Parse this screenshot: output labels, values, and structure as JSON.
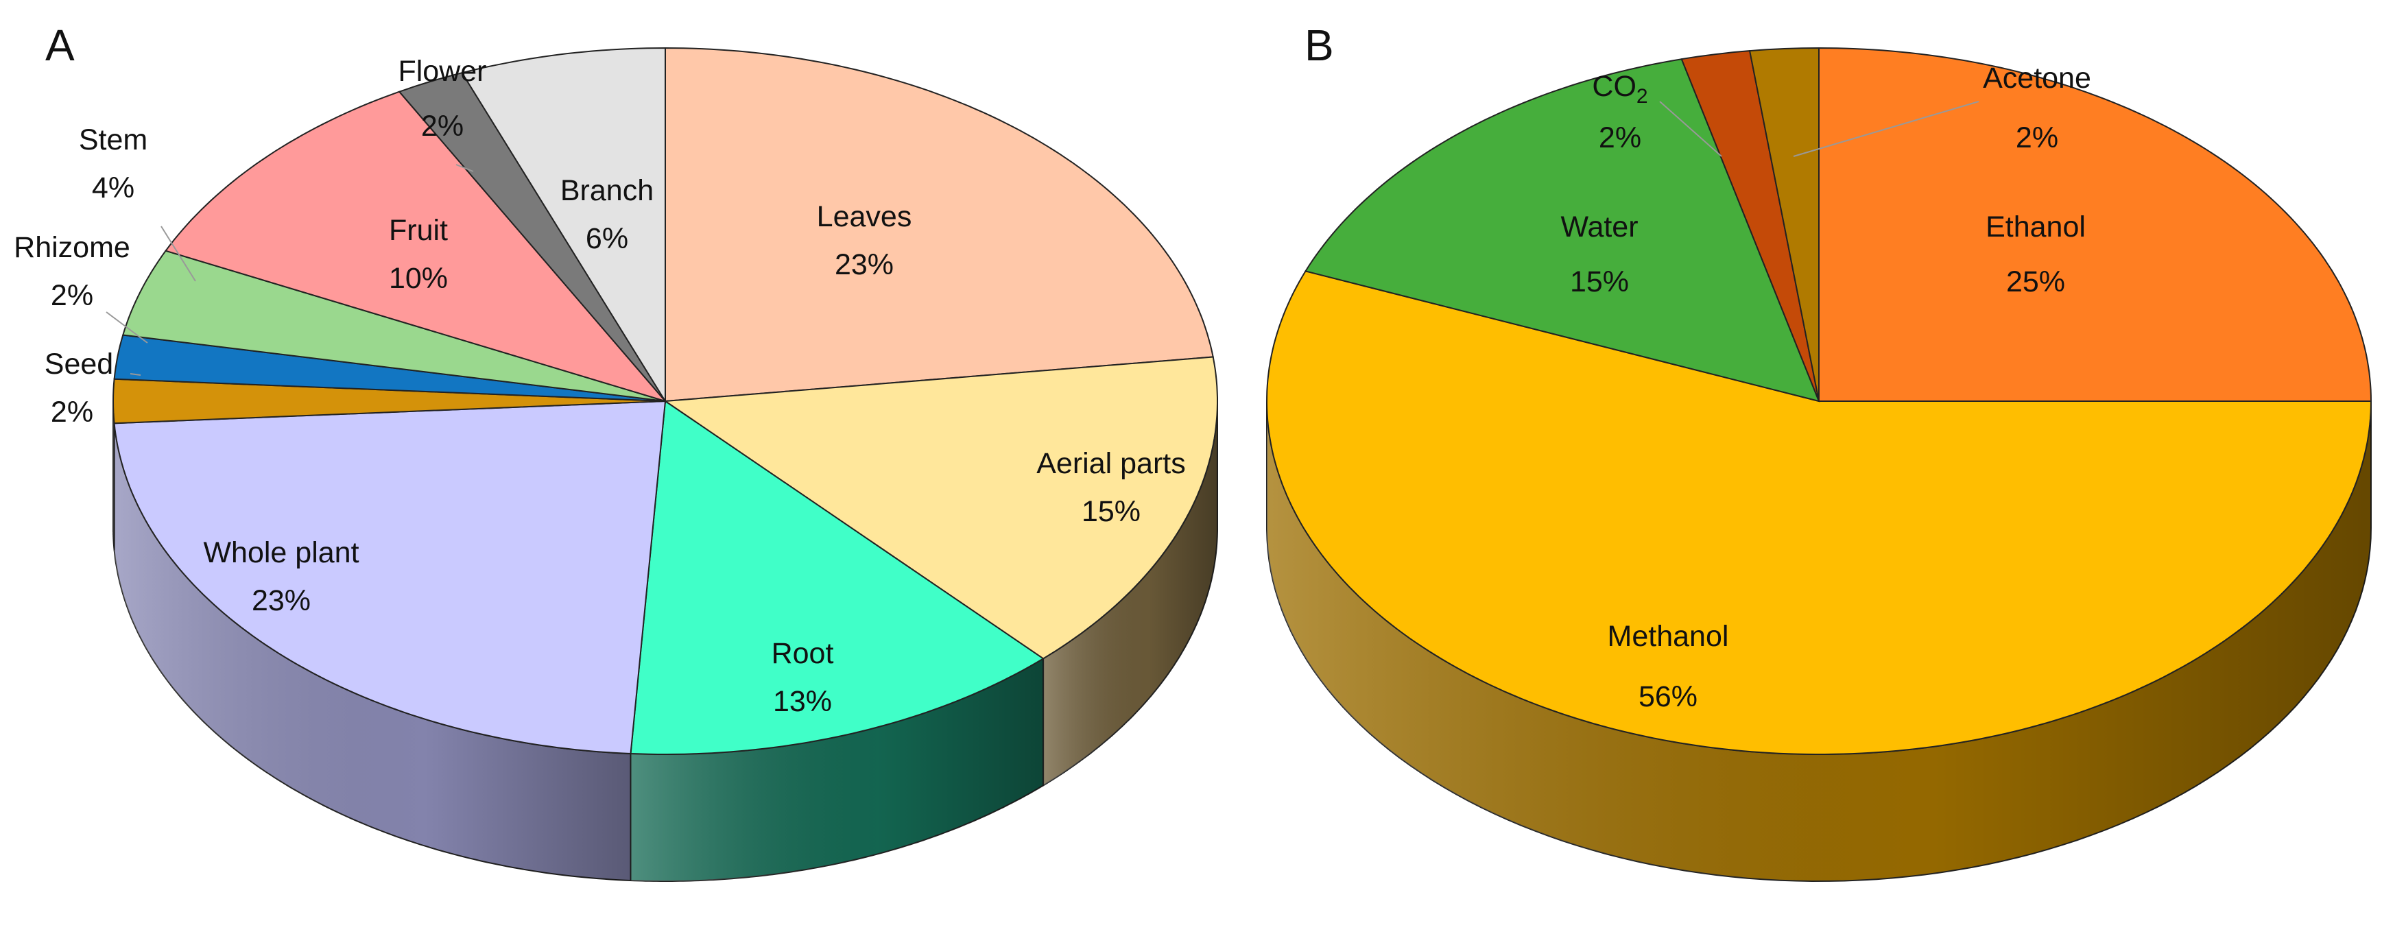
{
  "chart_data": [
    {
      "type": "pie",
      "style": "3d-pie",
      "panel": "A",
      "title": "",
      "slices": [
        {
          "label": "Leaves",
          "percent_label": "23%",
          "value": 23,
          "color": "#FFC8A9",
          "side_color": "#8A6A56"
        },
        {
          "label": "Aerial parts",
          "percent_label": "15%",
          "value": 15,
          "color": "#FFE79B",
          "side_color": "#6E5D3A"
        },
        {
          "label": "Root",
          "percent_label": "13%",
          "value": 13,
          "color": "#40FFC8",
          "side_color": "#146A54"
        },
        {
          "label": "Whole plant",
          "percent_label": "23%",
          "value": 23,
          "color": "#CACAFF",
          "side_color": "#8A8AB5"
        },
        {
          "label": "Seed",
          "percent_label": "2%",
          "value": 2,
          "color": "#D4920A",
          "side_color": "#8A5E06"
        },
        {
          "label": "Rhizome",
          "percent_label": "2%",
          "value": 2,
          "color": "#1276C2",
          "side_color": "#0A4A7A"
        },
        {
          "label": "Stem",
          "percent_label": "4%",
          "value": 4,
          "color": "#9AD88E",
          "side_color": "#5E8A56"
        },
        {
          "label": "Fruit",
          "percent_label": "10%",
          "value": 10,
          "color": "#FF9A9A",
          "side_color": "#A65E5E"
        },
        {
          "label": "Flower",
          "percent_label": "2%",
          "value": 2,
          "color": "#7A7A7A",
          "side_color": "#4A4A4A"
        },
        {
          "label": "Branch",
          "percent_label": "6%",
          "value": 6,
          "color": "#E3E3E3",
          "side_color": "#9A9A9A"
        }
      ]
    },
    {
      "type": "pie",
      "style": "3d-pie",
      "panel": "B",
      "title": "",
      "slices": [
        {
          "label": "Ethanol",
          "percent_label": "25%",
          "value": 25,
          "color": "#FF7E22",
          "side_color": "#9A4A10"
        },
        {
          "label": "Methanol",
          "percent_label": "56%",
          "value": 56,
          "color": "#FFBE00",
          "side_color": "#9C6E00"
        },
        {
          "label": "Water",
          "percent_label": "15%",
          "value": 15,
          "color": "#46AE3C",
          "side_color": "#2A6A24"
        },
        {
          "label": "CO",
          "label_sub": "2",
          "percent_label": "2%",
          "value": 2,
          "color": "#C44A08",
          "side_color": "#7A2E04"
        },
        {
          "label": "Acetone",
          "percent_label": "2%",
          "value": 2,
          "color": "#B07A00",
          "side_color": "#6E4C00"
        }
      ]
    }
  ]
}
